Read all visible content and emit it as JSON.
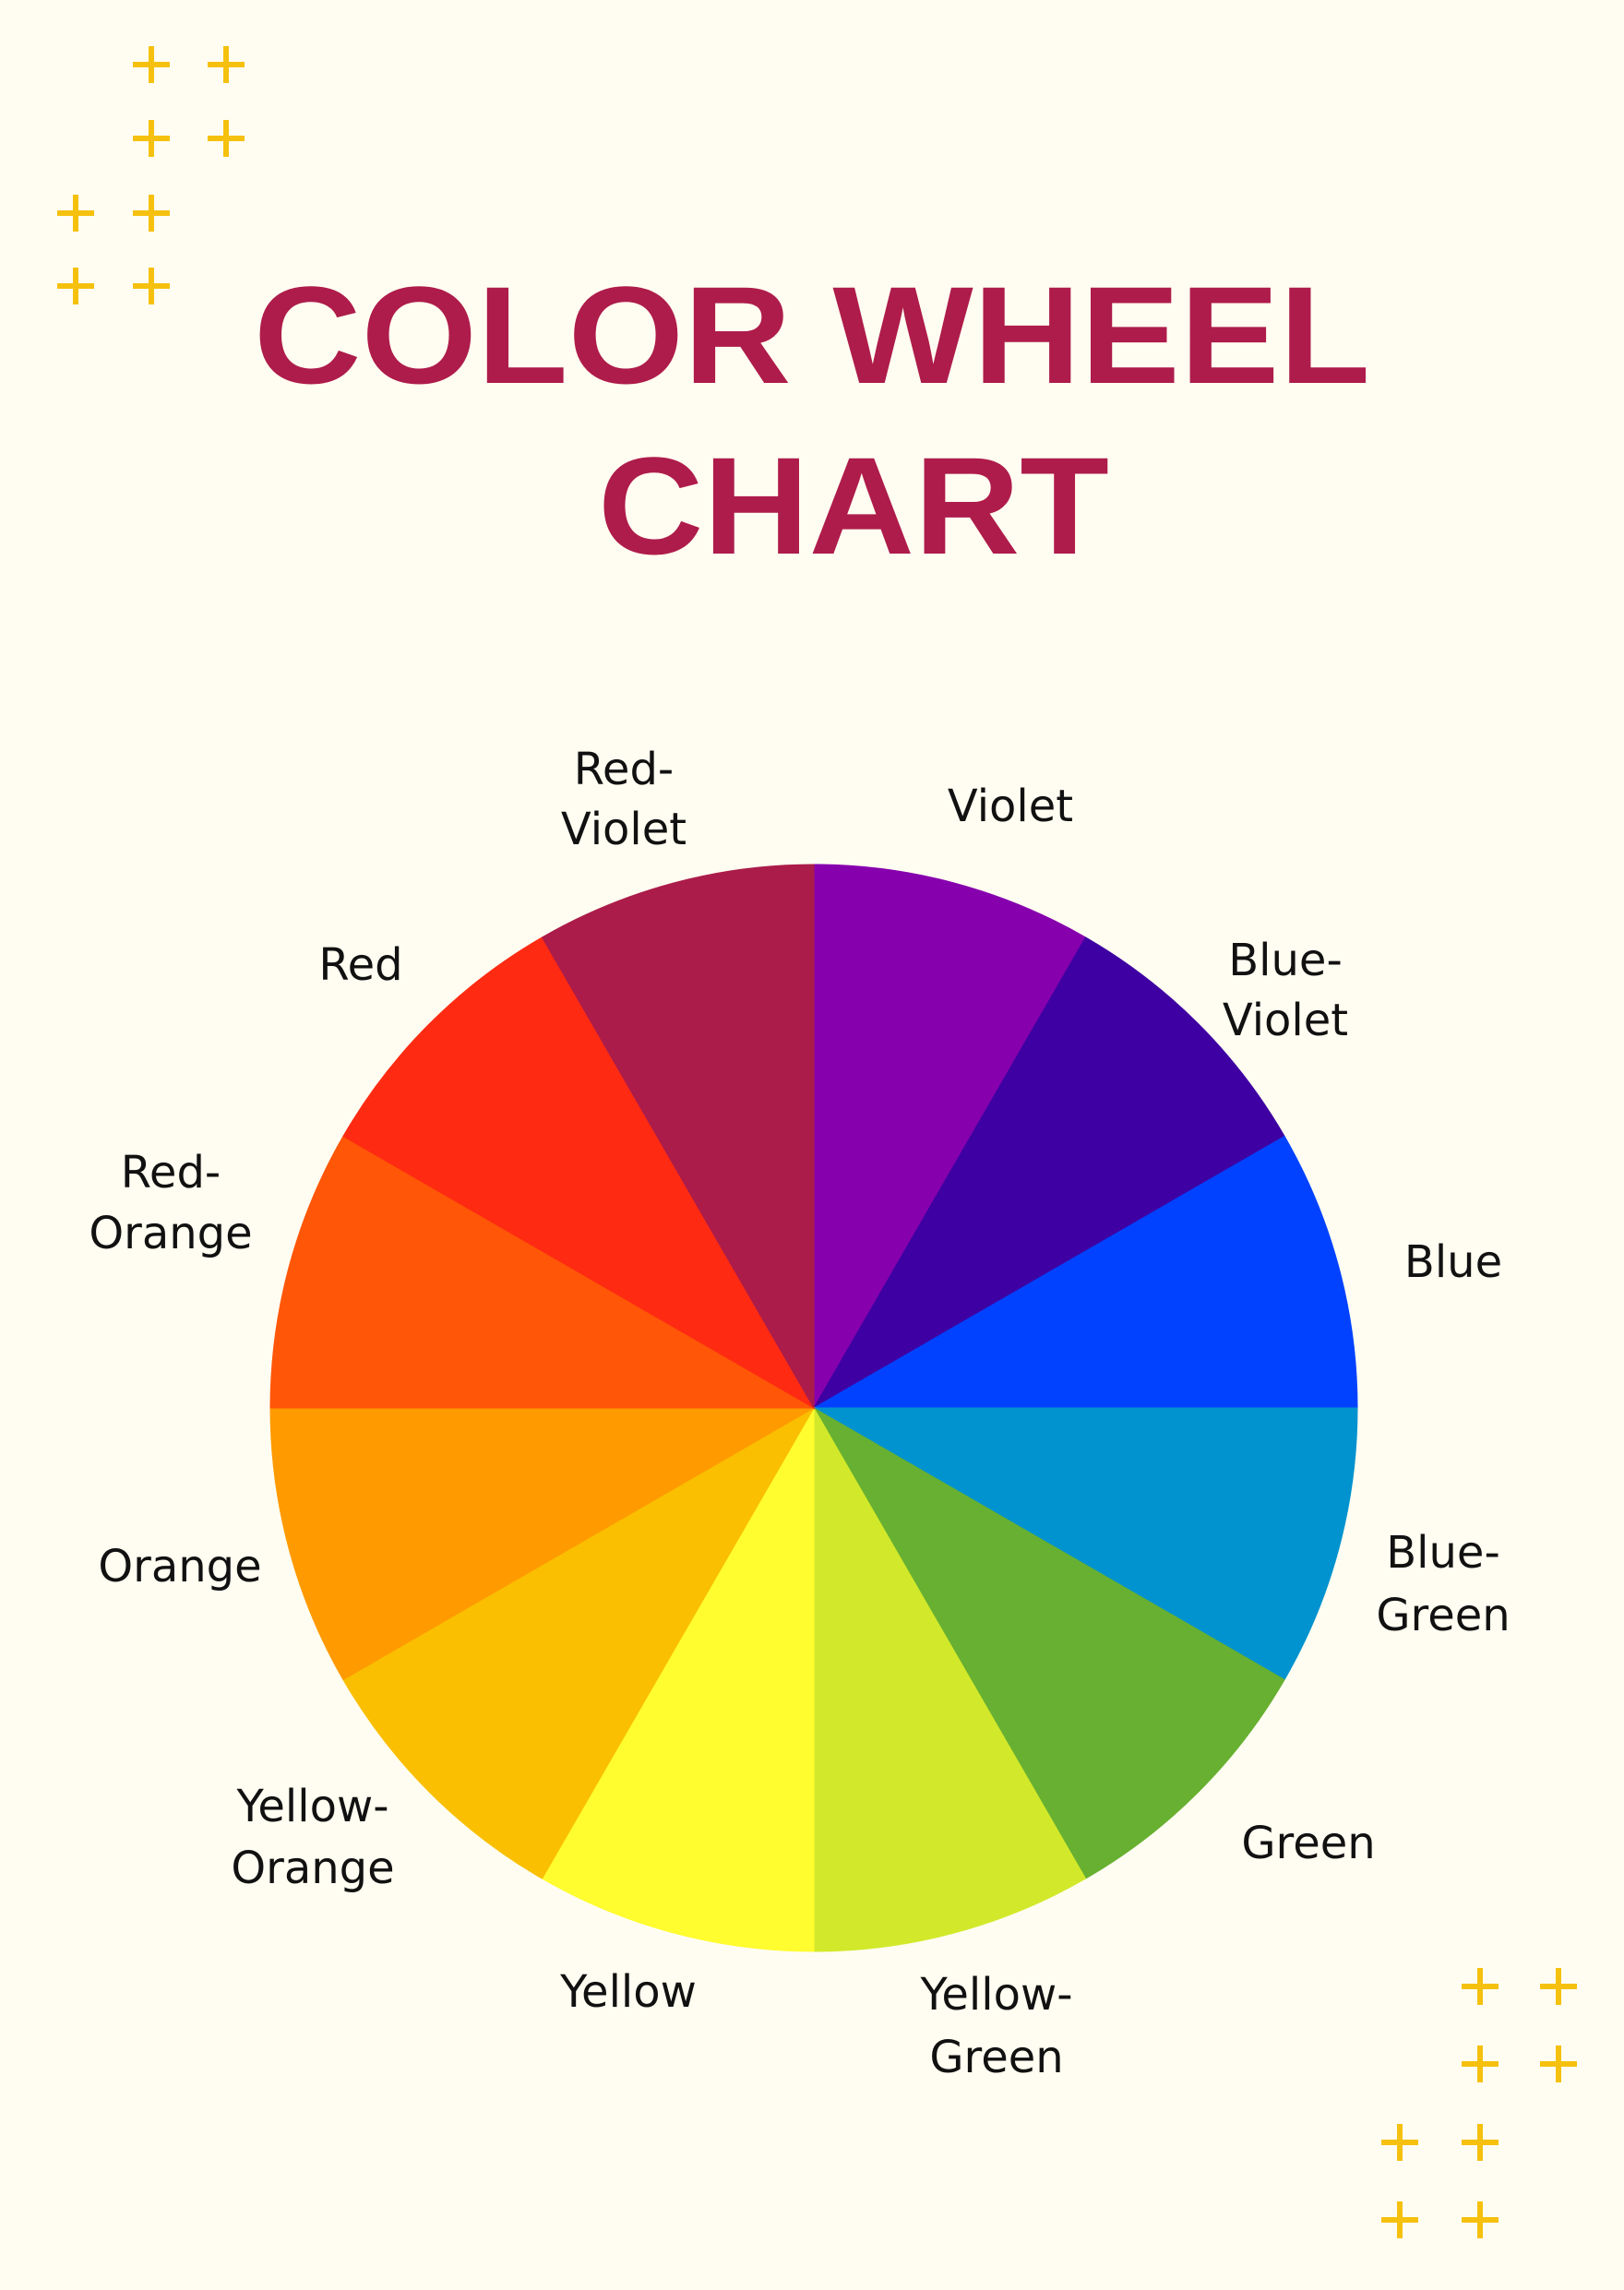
{
  "title": {
    "line1": "COLOR WHEEL",
    "line2": "CHART",
    "color": "#AE1C4B"
  },
  "background": "#FFFDF1",
  "decoration": {
    "icon": "plus-icon",
    "color": "#F5C10E"
  },
  "chart_data": {
    "type": "pie",
    "title": "COLOR WHEEL CHART",
    "start": "top",
    "direction": "clockwise",
    "slices": [
      {
        "name": "Violet",
        "lines": [
          "Violet"
        ],
        "value": 1,
        "color": "#8700AE"
      },
      {
        "name": "Blue-Violet",
        "lines": [
          "Blue-",
          "Violet"
        ],
        "value": 1,
        "color": "#3E00A2"
      },
      {
        "name": "Blue",
        "lines": [
          "Blue"
        ],
        "value": 1,
        "color": "#0042FF"
      },
      {
        "name": "Blue-Green",
        "lines": [
          "Blue-",
          "Green"
        ],
        "value": 1,
        "color": "#0093CF"
      },
      {
        "name": "Green",
        "lines": [
          "Green"
        ],
        "value": 1,
        "color": "#67B031"
      },
      {
        "name": "Yellow-Green",
        "lines": [
          "Yellow-",
          "Green"
        ],
        "value": 1,
        "color": "#D2E92B"
      },
      {
        "name": "Yellow",
        "lines": [
          "Yellow"
        ],
        "value": 1,
        "color": "#FFFC2F"
      },
      {
        "name": "Yellow-Orange",
        "lines": [
          "Yellow-",
          "Orange"
        ],
        "value": 1,
        "color": "#F9BF00"
      },
      {
        "name": "Orange",
        "lines": [
          "Orange"
        ],
        "value": 1,
        "color": "#FF9A00"
      },
      {
        "name": "Red-Orange",
        "lines": [
          "Red-",
          "Orange"
        ],
        "value": 1,
        "color": "#FF5608"
      },
      {
        "name": "Red",
        "lines": [
          "Red"
        ],
        "value": 1,
        "color": "#FF2A12"
      },
      {
        "name": "Red-Violet",
        "lines": [
          "Red-",
          "Violet"
        ],
        "value": 1,
        "color": "#AB1C4A"
      }
    ]
  }
}
